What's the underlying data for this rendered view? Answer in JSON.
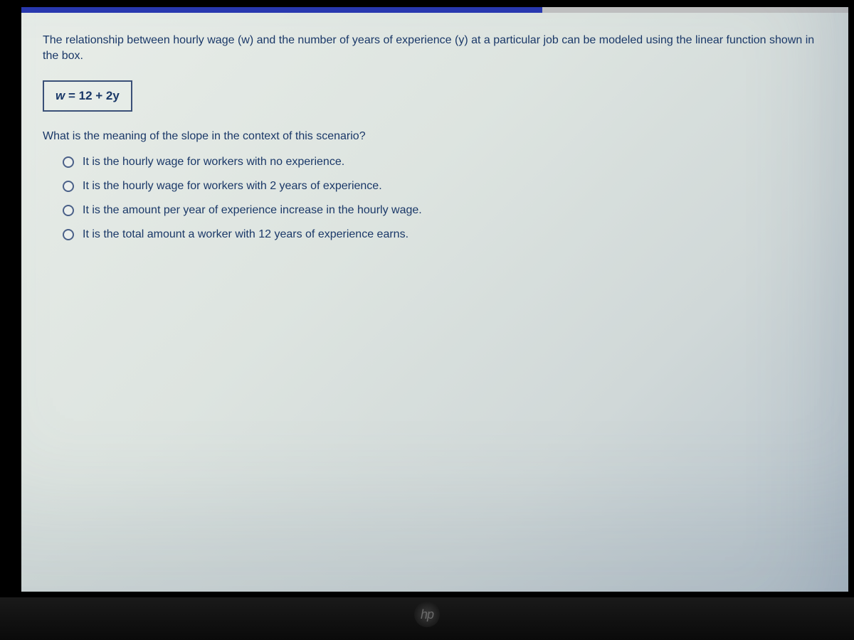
{
  "progress": {
    "percent": 63,
    "bar_color": "#2838b0",
    "track_color": "#c0c0c0"
  },
  "question": {
    "intro_text": "The relationship between hourly wage (w) and the number of years of experience (y) at a particular job can be modeled using the linear function shown in the box.",
    "equation_w": "w",
    "equation_eq": " = ",
    "equation_rhs": "12 + 2y",
    "sub_question": "What is the meaning of the slope in the context of this scenario?"
  },
  "options": [
    {
      "label": "It is the hourly wage for workers with no experience."
    },
    {
      "label": "It is the hourly wage for workers with 2 years of experience."
    },
    {
      "label": "It is the amount per year of experience increase in the hourly wage."
    },
    {
      "label": "It is the total amount a worker with 12 years of experience earns."
    }
  ],
  "style": {
    "text_color": "#1a3868",
    "screen_bg_start": "#e8ede8",
    "screen_bg_end": "#b8c4cc",
    "border_color": "#3a5078",
    "font_size_body": 16
  },
  "logo": {
    "text": "hp"
  }
}
